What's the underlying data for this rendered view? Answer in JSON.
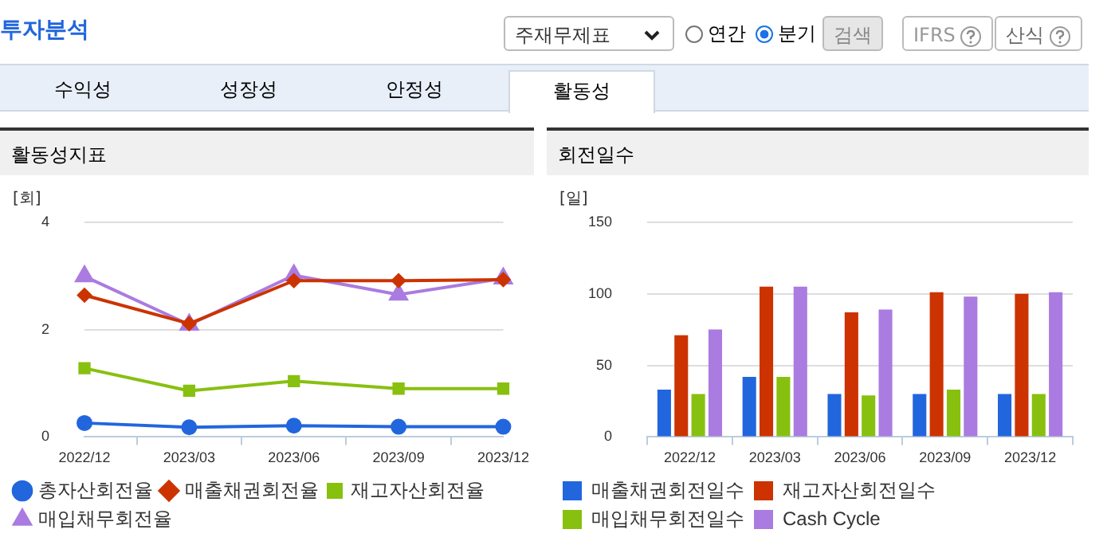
{
  "chart_data": [
    {
      "type": "other",
      "title": "투자분석",
      "annotations": [
        "주재무제표",
        "연간",
        "분기",
        "검색",
        "IFRS",
        "산식",
        "수익성",
        "성장성",
        "안정성",
        "활동성"
      ]
    },
    {
      "type": "line",
      "title": "활동성지표",
      "ylabel": "[회]",
      "categories": [
        "2022/12",
        "2023/03",
        "2023/06",
        "2023/09",
        "2023/12"
      ],
      "ylim": [
        0,
        4
      ],
      "yticks": [
        0,
        2,
        4
      ],
      "grid": "y",
      "legend": "bottom",
      "series": [
        {
          "name": "총자산회전율",
          "color": "#2266dd",
          "marker": "circle",
          "values": [
            0.26,
            0.18,
            0.21,
            0.19,
            0.19
          ]
        },
        {
          "name": "매출채권회전율",
          "color": "#cc3300",
          "marker": "diamond",
          "values": [
            2.64,
            2.11,
            2.91,
            2.91,
            2.93
          ]
        },
        {
          "name": "재고자산회전율",
          "color": "#88c010",
          "marker": "square",
          "values": [
            1.28,
            0.86,
            1.04,
            0.9,
            0.9
          ]
        },
        {
          "name": "매입채무회전율",
          "color": "#aa7be0",
          "marker": "triangle",
          "values": [
            2.99,
            2.09,
            3.01,
            2.65,
            2.95
          ]
        }
      ]
    },
    {
      "type": "bar",
      "title": "회전일수",
      "ylabel": "[일]",
      "categories": [
        "2022/12",
        "2023/03",
        "2023/06",
        "2023/09",
        "2023/12"
      ],
      "ylim": [
        0,
        150
      ],
      "yticks": [
        0,
        50,
        100,
        150
      ],
      "grid": "y",
      "legend": "bottom",
      "series": [
        {
          "name": "매출채권회전일수",
          "color": "#2266dd",
          "values": [
            33,
            42,
            30,
            30,
            30
          ]
        },
        {
          "name": "재고자산회전일수",
          "color": "#cc3300",
          "values": [
            71,
            105,
            87,
            101,
            100
          ]
        },
        {
          "name": "매입채무회전일수",
          "color": "#88c010",
          "values": [
            30,
            42,
            29,
            33,
            30
          ]
        },
        {
          "name": "Cash Cycle",
          "color": "#aa7be0",
          "values": [
            75,
            105,
            89,
            98,
            101
          ]
        }
      ]
    }
  ]
}
